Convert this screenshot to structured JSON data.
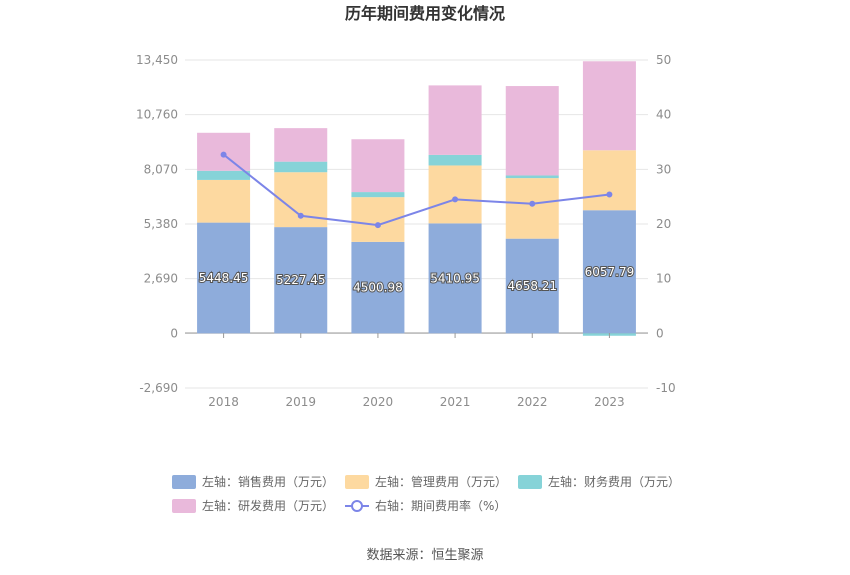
{
  "chart_data": {
    "type": "bar",
    "stacked": true,
    "title": "历年期间费用变化情况",
    "categories": [
      "2018",
      "2019",
      "2020",
      "2021",
      "2022",
      "2023"
    ],
    "left_axis": {
      "ticks": [
        "13,450",
        "10,760",
        "8,070",
        "5,380",
        "2,690",
        "0",
        "-2,690"
      ],
      "min": -2690,
      "max": 13450
    },
    "right_axis": {
      "ticks": [
        "50",
        "40",
        "30",
        "20",
        "10",
        "0",
        "-10"
      ],
      "min": -10,
      "max": 50
    },
    "series": [
      {
        "name": "左轴：销售费用（万元）",
        "color": "#8eacdb",
        "values": [
          5448.45,
          5227.45,
          4500.98,
          5410.95,
          4658.21,
          6057.79
        ],
        "labels": [
          "5448.45",
          "5227.45",
          "4500.98",
          "5410.95",
          "4658.21",
          "6057.79"
        ]
      },
      {
        "name": "左轴：管理费用（万元）",
        "color": "#fdd9a0",
        "values": [
          2100,
          2700,
          2200,
          2850,
          2980,
          2950
        ]
      },
      {
        "name": "左轴：财务费用（万元）",
        "color": "#86d3d8",
        "values": [
          450,
          520,
          250,
          520,
          130,
          -120
        ]
      },
      {
        "name": "左轴：研发费用（万元）",
        "color": "#e9b9db",
        "values": [
          1870,
          1650,
          2600,
          3420,
          4400,
          4380
        ]
      }
    ],
    "line_series": {
      "name": "右轴：期间费用率（%）",
      "color": "#7c85e8",
      "values": [
        32.7,
        21.5,
        19.8,
        24.5,
        23.7,
        25.4
      ]
    },
    "grid": true,
    "legend_position": "bottom"
  },
  "source": "数据来源：恒生聚源"
}
